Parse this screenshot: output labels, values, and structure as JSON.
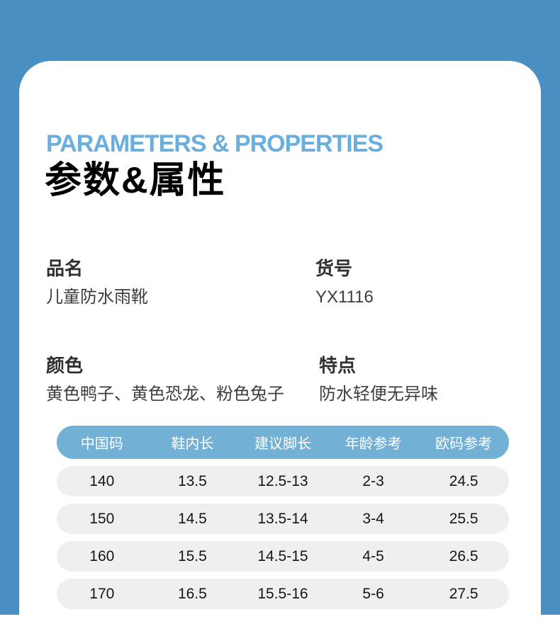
{
  "colors": {
    "page_blue": "#4A8FC1",
    "card_white": "#FFFFFF",
    "title_blue": "#69AEDC",
    "table_header_blue": "#73B0D5",
    "table_row_gray": "#EFEFEF"
  },
  "header": {
    "title_en": "PARAMETERS & PROPERTIES",
    "title_zh": "参数&属性"
  },
  "info_fields": {
    "product_name": {
      "label": "品名",
      "value": "儿童防水雨靴"
    },
    "item_number": {
      "label": "货号",
      "value": "YX1116"
    },
    "color": {
      "label": "颜色",
      "value": "黄色鸭子、黄色恐龙、粉色兔子"
    },
    "features": {
      "label": "特点",
      "value": "防水轻便无异味"
    }
  },
  "size_table": {
    "columns": [
      "中国码",
      "鞋内长",
      "建议脚长",
      "年龄参考",
      "欧码参考"
    ],
    "rows": [
      [
        "140",
        "13.5",
        "12.5-13",
        "2-3",
        "24.5"
      ],
      [
        "150",
        "14.5",
        "13.5-14",
        "3-4",
        "25.5"
      ],
      [
        "160",
        "15.5",
        "14.5-15",
        "4-5",
        "26.5"
      ],
      [
        "170",
        "16.5",
        "15.5-16",
        "5-6",
        "27.5"
      ]
    ]
  }
}
